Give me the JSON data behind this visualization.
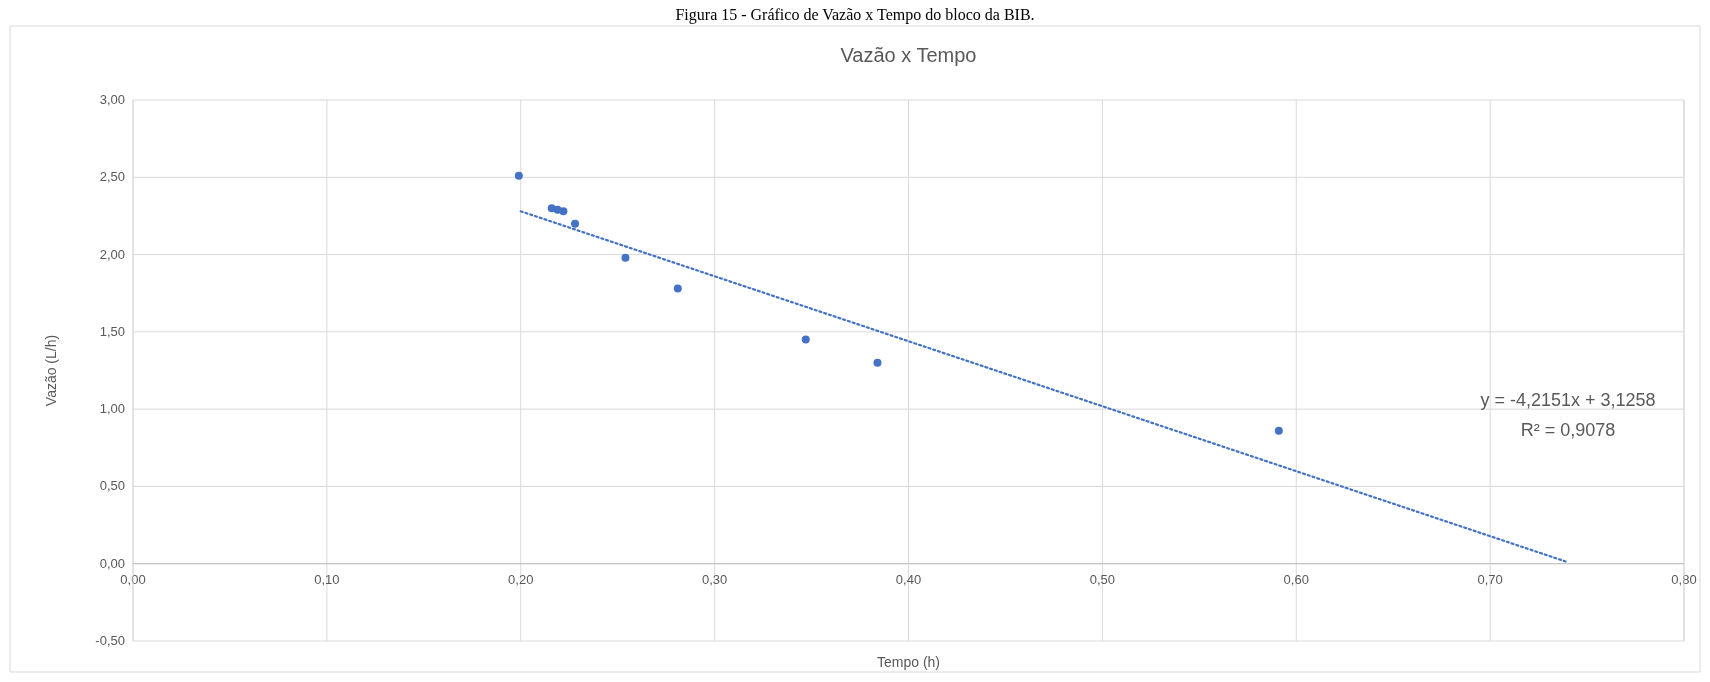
{
  "chart_data": {
    "type": "scatter",
    "title": "Vazão x Tempo",
    "xlabel": "Tempo (h)",
    "ylabel": "Vazão (L/h)",
    "annotations": [
      "Figura 15 - Gráfico de Vazão x Tempo do bloco da BIB.",
      "y = -4,2151x + 3,1258",
      "R² = 0,9078"
    ],
    "xlim": [
      0,
      0.8
    ],
    "ylim": [
      -0.5,
      3
    ],
    "xticks": [
      {
        "value": 0,
        "label": "0,00"
      },
      {
        "value": 0.1,
        "label": "0,10"
      },
      {
        "value": 0.2,
        "label": "0,20"
      },
      {
        "value": 0.3,
        "label": "0,30"
      },
      {
        "value": 0.4,
        "label": "0,40"
      },
      {
        "value": 0.5,
        "label": "0,50"
      },
      {
        "value": 0.6,
        "label": "0,60"
      },
      {
        "value": 0.7,
        "label": "0,70"
      },
      {
        "value": 0.8,
        "label": "0,80"
      }
    ],
    "yticks": [
      {
        "value": -0.5,
        "label": "-0,50"
      },
      {
        "value": 0,
        "label": "0,00"
      },
      {
        "value": 0.5,
        "label": "0,50"
      },
      {
        "value": 1,
        "label": "1,00"
      },
      {
        "value": 1.5,
        "label": "1,50"
      },
      {
        "value": 2,
        "label": "2,00"
      },
      {
        "value": 2.5,
        "label": "2,50"
      },
      {
        "value": 3,
        "label": "3,00"
      }
    ],
    "grid": true,
    "series": [
      {
        "color": "#4472c4",
        "marker": "circle",
        "x": [
          0.199,
          0.216,
          0.219,
          0.222,
          0.228,
          0.254,
          0.281,
          0.347,
          0.384,
          0.591
        ],
        "values": [
          2.51,
          2.3,
          2.29,
          2.28,
          2.2,
          1.98,
          1.78,
          1.45,
          1.3,
          0.86
        ]
      },
      {
        "type": "line",
        "color": "#4472c4",
        "line_style": "dotted",
        "x": [
          0.2,
          0.74
        ],
        "values": [
          2.28,
          0.01
        ]
      }
    ]
  }
}
